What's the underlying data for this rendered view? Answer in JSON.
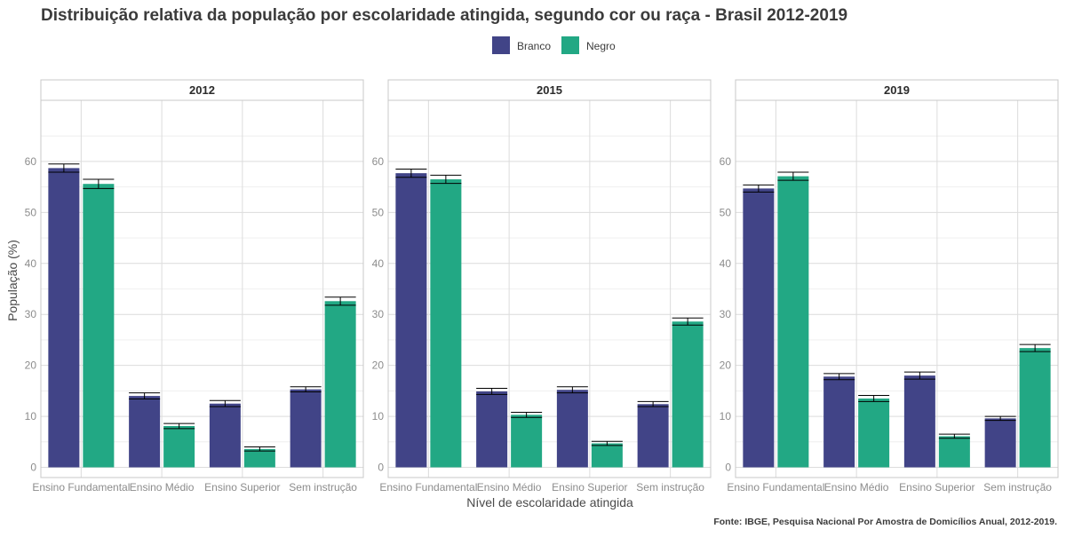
{
  "chart_data": {
    "type": "bar",
    "title": "Distribuição relativa da população por escolaridade atingida, segundo cor ou raça - Brasil 2012-2019",
    "ylabel": "População (%)",
    "xlabel": "Nível de escolaridade atingida",
    "caption": "Fonte: IBGE, Pesquisa Nacional Por Amostra de Domicílios Anual, 2012-2019.",
    "legend": {
      "position": "top",
      "entries": [
        "Branco",
        "Negro"
      ]
    },
    "colors": {
      "Branco": "#414487",
      "Negro": "#22a884"
    },
    "ylim": [
      -2,
      72
    ],
    "yticks": [
      0,
      10,
      20,
      30,
      40,
      50,
      60
    ],
    "grid": true,
    "categories": [
      "Ensino Fundamental",
      "Ensino Médio",
      "Ensino Superior",
      "Sem instrução"
    ],
    "panels": [
      {
        "label": "2012",
        "series": [
          {
            "name": "Branco",
            "values": [
              58.7,
              14.0,
              12.5,
              15.3
            ],
            "err": [
              0.8,
              0.6,
              0.6,
              0.5
            ]
          },
          {
            "name": "Negro",
            "values": [
              55.6,
              8.1,
              3.6,
              32.6
            ],
            "err": [
              0.9,
              0.5,
              0.4,
              0.8
            ]
          }
        ]
      },
      {
        "label": "2015",
        "series": [
          {
            "name": "Branco",
            "values": [
              57.7,
              14.9,
              15.2,
              12.4
            ],
            "err": [
              0.8,
              0.6,
              0.6,
              0.5
            ]
          },
          {
            "name": "Negro",
            "values": [
              56.5,
              10.3,
              4.7,
              28.6
            ],
            "err": [
              0.8,
              0.5,
              0.4,
              0.7
            ]
          }
        ]
      },
      {
        "label": "2019",
        "series": [
          {
            "name": "Branco",
            "values": [
              54.7,
              17.8,
              18.0,
              9.6
            ],
            "err": [
              0.7,
              0.6,
              0.7,
              0.4
            ]
          },
          {
            "name": "Negro",
            "values": [
              57.1,
              13.5,
              6.1,
              23.4
            ],
            "err": [
              0.8,
              0.6,
              0.4,
              0.7
            ]
          }
        ]
      }
    ]
  }
}
